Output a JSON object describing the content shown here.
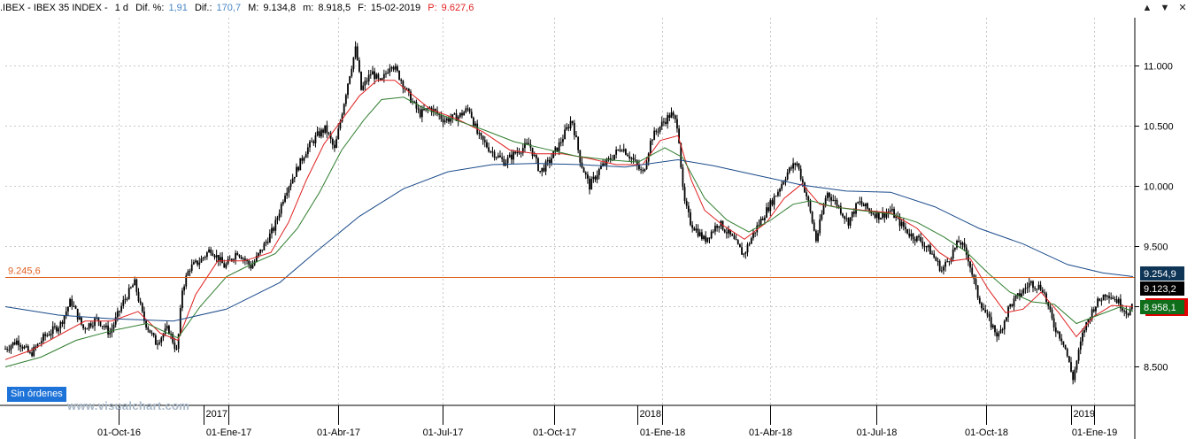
{
  "header": {
    "symbol": ".IBEX - IBEX 35 INDEX -",
    "timeframe": "1 d",
    "dif_pct_label": "Dif. %:",
    "dif_pct_value": "1,91",
    "dif_label": "Dif.:",
    "dif_value": "170,7",
    "high_label": "M:",
    "high_value": "9.134,8",
    "low_label": "m:",
    "low_value": "8.918,5",
    "date_label": "F:",
    "date_value": "15-02-2019",
    "p_label": "P:",
    "p_value": "9.627,6"
  },
  "window_buttons": [
    "▲",
    "▼",
    "✕"
  ],
  "sin_ordenes_label": "Sin órdenes",
  "watermark": "www.visualchart.com",
  "colors": {
    "candle": "#000000",
    "ma_short": "#e02020",
    "ma_medium": "#2e7d2e",
    "ma_long": "#1a4a8a",
    "hline": "#e06020",
    "badge_long": "#0e3556",
    "badge_mid": "#000000",
    "badge_close": "#0f6e1a",
    "badge_accent": "#e00000"
  },
  "chart_data": {
    "type": "line",
    "y_ticks": [
      {
        "value": 8500,
        "label": "8.500"
      },
      {
        "value": 9000,
        "label": "9.000"
      },
      {
        "value": 9500,
        "label": "9.500"
      },
      {
        "value": 10000,
        "label": "10.000"
      },
      {
        "value": 10500,
        "label": "10.500"
      },
      {
        "value": 11000,
        "label": "11.000"
      }
    ],
    "ylim": [
      8180,
      11400
    ],
    "x_ticks": [
      "01-Oct-16",
      "01-Ene-17",
      "01-Abr-17",
      "01-Jul-17",
      "01-Oct-17",
      "01-Ene-18",
      "01-Abr-18",
      "01-Jul-18",
      "01-Oct-18",
      "01-Ene-19"
    ],
    "year_marks": [
      "2017",
      "2018",
      "2019"
    ],
    "horizontal_line": {
      "value": 9245.6,
      "label": "9.245,6"
    },
    "price_badges": [
      {
        "value": 9254.9,
        "label": "9.254,9",
        "role": "long"
      },
      {
        "value": 9123.2,
        "label": "9.123,2",
        "role": "mid"
      },
      {
        "value": 8958.1,
        "label": "8.958,1",
        "role": "close"
      }
    ],
    "series": [
      {
        "role": "price",
        "points": [
          [
            0,
            8650
          ],
          [
            14,
            8720
          ],
          [
            28,
            8600
          ],
          [
            44,
            8750
          ],
          [
            62,
            8850
          ],
          [
            74,
            9050
          ],
          [
            88,
            8820
          ],
          [
            104,
            8900
          ],
          [
            118,
            8780
          ],
          [
            134,
            9050
          ],
          [
            146,
            9200
          ],
          [
            156,
            8900
          ],
          [
            170,
            8700
          ],
          [
            184,
            8820
          ],
          [
            194,
            8620
          ],
          [
            200,
            9150
          ],
          [
            208,
            9320
          ],
          [
            220,
            9380
          ],
          [
            232,
            9480
          ],
          [
            248,
            9330
          ],
          [
            262,
            9460
          ],
          [
            278,
            9330
          ],
          [
            290,
            9480
          ],
          [
            304,
            9660
          ],
          [
            316,
            9950
          ],
          [
            328,
            10120
          ],
          [
            340,
            10300
          ],
          [
            352,
            10420
          ],
          [
            362,
            10480
          ],
          [
            372,
            10300
          ],
          [
            380,
            10600
          ],
          [
            388,
            10900
          ],
          [
            396,
            11150
          ],
          [
            402,
            10800
          ],
          [
            414,
            10950
          ],
          [
            424,
            10850
          ],
          [
            436,
            11030
          ],
          [
            446,
            10900
          ],
          [
            456,
            10750
          ],
          [
            468,
            10600
          ],
          [
            480,
            10650
          ],
          [
            496,
            10550
          ],
          [
            512,
            10580
          ],
          [
            524,
            10650
          ],
          [
            534,
            10420
          ],
          [
            548,
            10300
          ],
          [
            564,
            10200
          ],
          [
            580,
            10300
          ],
          [
            592,
            10350
          ],
          [
            604,
            10120
          ],
          [
            614,
            10200
          ],
          [
            626,
            10350
          ],
          [
            640,
            10560
          ],
          [
            650,
            10200
          ],
          [
            660,
            10000
          ],
          [
            672,
            10150
          ],
          [
            684,
            10230
          ],
          [
            696,
            10330
          ],
          [
            708,
            10230
          ],
          [
            720,
            10100
          ],
          [
            730,
            10400
          ],
          [
            742,
            10520
          ],
          [
            752,
            10600
          ],
          [
            760,
            10500
          ],
          [
            766,
            9900
          ],
          [
            774,
            9700
          ],
          [
            790,
            9550
          ],
          [
            806,
            9700
          ],
          [
            820,
            9580
          ],
          [
            834,
            9430
          ],
          [
            846,
            9620
          ],
          [
            860,
            9800
          ],
          [
            872,
            9950
          ],
          [
            884,
            10120
          ],
          [
            894,
            10200
          ],
          [
            906,
            9900
          ],
          [
            916,
            9550
          ],
          [
            928,
            9950
          ],
          [
            940,
            9850
          ],
          [
            952,
            9700
          ],
          [
            964,
            9870
          ],
          [
            976,
            9800
          ],
          [
            988,
            9750
          ],
          [
            1000,
            9800
          ],
          [
            1010,
            9700
          ],
          [
            1022,
            9600
          ],
          [
            1034,
            9550
          ],
          [
            1046,
            9450
          ],
          [
            1058,
            9300
          ],
          [
            1066,
            9400
          ],
          [
            1078,
            9550
          ],
          [
            1088,
            9400
          ],
          [
            1098,
            9100
          ],
          [
            1110,
            8900
          ],
          [
            1122,
            8750
          ],
          [
            1134,
            9000
          ],
          [
            1146,
            9100
          ],
          [
            1158,
            9200
          ],
          [
            1172,
            9150
          ],
          [
            1184,
            8850
          ],
          [
            1196,
            8700
          ],
          [
            1206,
            8400
          ],
          [
            1218,
            8800
          ],
          [
            1230,
            9000
          ],
          [
            1244,
            9120
          ],
          [
            1256,
            9050
          ],
          [
            1268,
            8950
          ],
          [
            1274,
            9000
          ]
        ]
      },
      {
        "role": "ma_short",
        "points": [
          [
            0,
            8560
          ],
          [
            30,
            8640
          ],
          [
            60,
            8760
          ],
          [
            90,
            8880
          ],
          [
            120,
            8880
          ],
          [
            150,
            8960
          ],
          [
            175,
            8780
          ],
          [
            195,
            8720
          ],
          [
            215,
            9100
          ],
          [
            240,
            9380
          ],
          [
            270,
            9380
          ],
          [
            300,
            9450
          ],
          [
            320,
            9700
          ],
          [
            340,
            10050
          ],
          [
            360,
            10350
          ],
          [
            380,
            10550
          ],
          [
            400,
            10750
          ],
          [
            420,
            10880
          ],
          [
            440,
            10880
          ],
          [
            460,
            10760
          ],
          [
            480,
            10640
          ],
          [
            510,
            10560
          ],
          [
            540,
            10450
          ],
          [
            570,
            10300
          ],
          [
            600,
            10270
          ],
          [
            630,
            10270
          ],
          [
            660,
            10230
          ],
          [
            690,
            10180
          ],
          [
            720,
            10180
          ],
          [
            740,
            10380
          ],
          [
            760,
            10420
          ],
          [
            775,
            10050
          ],
          [
            790,
            9800
          ],
          [
            810,
            9680
          ],
          [
            835,
            9560
          ],
          [
            860,
            9700
          ],
          [
            880,
            9900
          ],
          [
            900,
            10020
          ],
          [
            920,
            9850
          ],
          [
            945,
            9820
          ],
          [
            970,
            9800
          ],
          [
            1000,
            9780
          ],
          [
            1030,
            9650
          ],
          [
            1055,
            9450
          ],
          [
            1070,
            9380
          ],
          [
            1090,
            9400
          ],
          [
            1110,
            9150
          ],
          [
            1130,
            8950
          ],
          [
            1150,
            8980
          ],
          [
            1170,
            9120
          ],
          [
            1190,
            8950
          ],
          [
            1210,
            8750
          ],
          [
            1230,
            8920
          ],
          [
            1250,
            9010
          ],
          [
            1274,
            9000
          ]
        ]
      },
      {
        "role": "ma_medium",
        "points": [
          [
            0,
            8500
          ],
          [
            40,
            8580
          ],
          [
            80,
            8720
          ],
          [
            120,
            8800
          ],
          [
            160,
            8860
          ],
          [
            195,
            8740
          ],
          [
            220,
            9000
          ],
          [
            250,
            9250
          ],
          [
            280,
            9360
          ],
          [
            305,
            9440
          ],
          [
            330,
            9650
          ],
          [
            355,
            9950
          ],
          [
            380,
            10300
          ],
          [
            405,
            10550
          ],
          [
            425,
            10720
          ],
          [
            450,
            10740
          ],
          [
            475,
            10640
          ],
          [
            505,
            10560
          ],
          [
            540,
            10470
          ],
          [
            575,
            10370
          ],
          [
            610,
            10310
          ],
          [
            645,
            10250
          ],
          [
            680,
            10220
          ],
          [
            715,
            10200
          ],
          [
            745,
            10320
          ],
          [
            765,
            10240
          ],
          [
            790,
            9900
          ],
          [
            815,
            9720
          ],
          [
            840,
            9620
          ],
          [
            865,
            9720
          ],
          [
            890,
            9850
          ],
          [
            910,
            9880
          ],
          [
            935,
            9830
          ],
          [
            965,
            9800
          ],
          [
            1000,
            9770
          ],
          [
            1030,
            9700
          ],
          [
            1060,
            9580
          ],
          [
            1085,
            9460
          ],
          [
            1110,
            9280
          ],
          [
            1135,
            9120
          ],
          [
            1160,
            9040
          ],
          [
            1185,
            9020
          ],
          [
            1210,
            8860
          ],
          [
            1235,
            8930
          ],
          [
            1260,
            9000
          ],
          [
            1274,
            8960
          ]
        ]
      },
      {
        "role": "ma_long",
        "points": [
          [
            0,
            9000
          ],
          [
            60,
            8930
          ],
          [
            120,
            8900
          ],
          [
            190,
            8880
          ],
          [
            250,
            8980
          ],
          [
            310,
            9200
          ],
          [
            350,
            9450
          ],
          [
            400,
            9750
          ],
          [
            450,
            9980
          ],
          [
            500,
            10120
          ],
          [
            550,
            10180
          ],
          [
            600,
            10190
          ],
          [
            650,
            10180
          ],
          [
            700,
            10160
          ],
          [
            760,
            10220
          ],
          [
            800,
            10170
          ],
          [
            850,
            10090
          ],
          [
            900,
            10010
          ],
          [
            950,
            9960
          ],
          [
            1000,
            9950
          ],
          [
            1050,
            9830
          ],
          [
            1100,
            9650
          ],
          [
            1150,
            9520
          ],
          [
            1200,
            9350
          ],
          [
            1240,
            9280
          ],
          [
            1274,
            9250
          ]
        ]
      }
    ]
  }
}
